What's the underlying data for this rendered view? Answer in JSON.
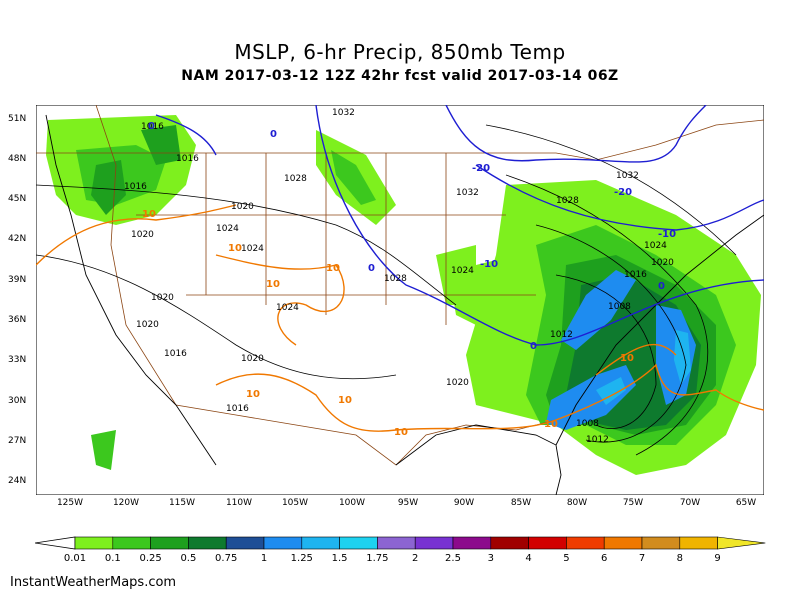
{
  "title": "MSLP, 6-hr Precip, 850mb Temp",
  "subtitle": "NAM 2017-03-12 12Z 42hr fcst valid 2017-03-14 06Z",
  "lat_labels": [
    "51N",
    "48N",
    "45N",
    "42N",
    "39N",
    "36N",
    "33N",
    "30N",
    "27N",
    "24N"
  ],
  "lon_labels": [
    "125W",
    "120W",
    "115W",
    "110W",
    "105W",
    "100W",
    "95W",
    "90W",
    "85W",
    "80W",
    "75W",
    "70W",
    "65W"
  ],
  "colorbar": {
    "labels": [
      "0.01",
      "0.1",
      "0.25",
      "0.5",
      "0.75",
      "1",
      "1.25",
      "1.5",
      "1.75",
      "2",
      "2.5",
      "3",
      "4",
      "5",
      "6",
      "7",
      "8",
      "9"
    ],
    "colors": [
      "#7ef01e",
      "#3cc81e",
      "#1ea01e",
      "#0e7a2e",
      "#1e4e96",
      "#1e8cf0",
      "#1eb4f0",
      "#1ed2f0",
      "#8c64d2",
      "#7832d2",
      "#8c0a8c",
      "#a00000",
      "#d20000",
      "#f03c00",
      "#f07800",
      "#d28c1e",
      "#f0b400",
      "#f0e628"
    ]
  },
  "isobar_labels": [
    "1032",
    "1016",
    "1016",
    "1016",
    "1028",
    "1020",
    "1020",
    "1024",
    "1024",
    "1020",
    "1020",
    "1024",
    "1016",
    "1020",
    "1028",
    "1032",
    "1028",
    "1032",
    "1024",
    "1024",
    "1016",
    "1020",
    "1008",
    "1012",
    "1008",
    "1012",
    "1020",
    "1016"
  ],
  "temp_labels_blue": [
    "0",
    "0",
    "-20",
    "-20",
    "-10",
    "-10",
    "0",
    "0",
    "0"
  ],
  "temp_labels_orange": [
    "10",
    "10",
    "10",
    "10",
    "10",
    "10",
    "10",
    "10",
    "10"
  ],
  "credit": "InstantWeatherMaps.com"
}
